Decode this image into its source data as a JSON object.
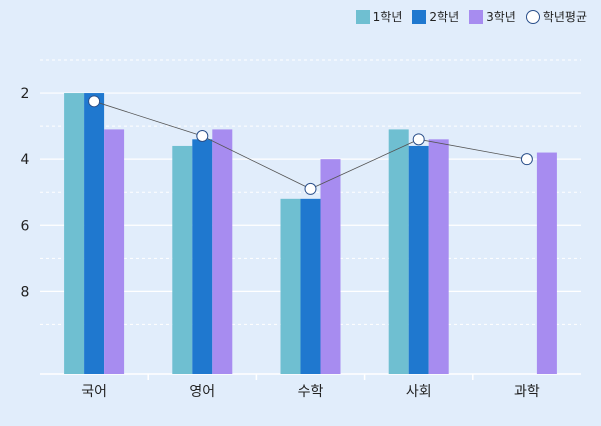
{
  "chart_data": {
    "type": "bar",
    "categories": [
      "국어",
      "영어",
      "수학",
      "사회",
      "과학"
    ],
    "y_axis": {
      "ticks": [
        2,
        4,
        6,
        8
      ],
      "ylim": [
        1,
        10.5
      ],
      "reversed": true,
      "grid": true
    },
    "series": [
      {
        "name": "1학년",
        "color": "#6fbfd1",
        "values": [
          2,
          3.6,
          5.2,
          3.1,
          null
        ]
      },
      {
        "name": "2학년",
        "color": "#1f78cf",
        "values": [
          2,
          3.4,
          5.2,
          3.6,
          null
        ]
      },
      {
        "name": "3학년",
        "color": "#a78cf0",
        "values": [
          3.1,
          3.1,
          4.0,
          3.4,
          3.8
        ]
      }
    ],
    "line_series": {
      "name": "학년평균",
      "color": "#555555",
      "values": [
        2.25,
        3.3,
        4.9,
        3.4,
        4.0
      ]
    },
    "legend_position": "top-right"
  }
}
